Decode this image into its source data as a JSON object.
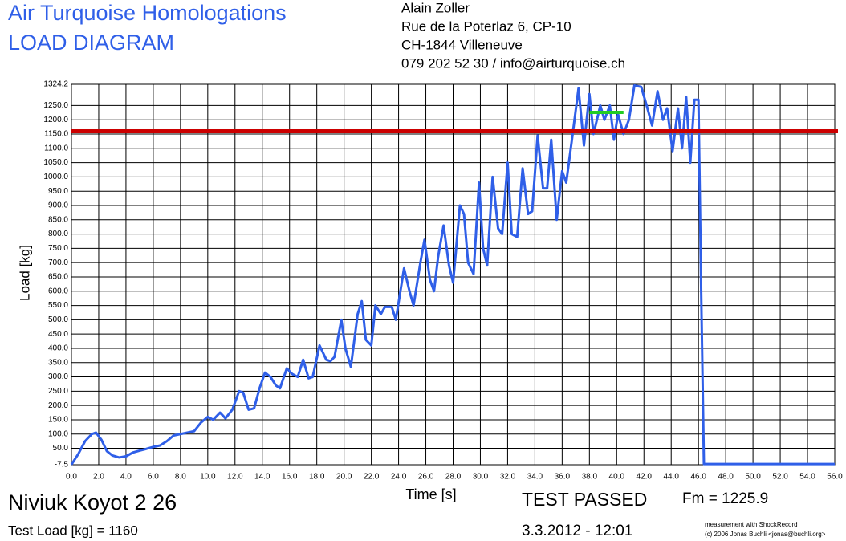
{
  "chart_data": {
    "type": "line",
    "title": "Air Turquoise Homologations",
    "subtitle": "LOAD DIAGRAM",
    "header_lines": [
      "Alain Zoller",
      "Rue de la Poterlaz 6, CP-10",
      "CH-1844 Villeneuve",
      "079 202 52 30 / info@airturquoise.ch"
    ],
    "x_label": "Time [s]",
    "y_label": "Load [kg]",
    "glider": "Niviuk Koyot 2 26",
    "result": "TEST PASSED",
    "date": "3.3.2012 - 12:01",
    "credit_lines": [
      "measurement with ShockRecord",
      "(c) 2006 Jonas Buchli <jonas@buchli.org>"
    ],
    "test_load": {
      "label": "Test Load [kg] = 1160",
      "value": 1160,
      "color": "#cc0000"
    },
    "fm": {
      "label": "Fm = 1225.9",
      "value": 1225.9,
      "xrange": [
        38,
        40.5
      ],
      "color": "#22cc22"
    },
    "grid": true,
    "xlim": [
      0,
      56
    ],
    "ylim": [
      -7.5,
      1324.2
    ],
    "xticks": [
      {
        "value": 0,
        "label": "0.0"
      },
      {
        "value": 2,
        "label": "2.0"
      },
      {
        "value": 4,
        "label": "4.0"
      },
      {
        "value": 6,
        "label": "6.0"
      },
      {
        "value": 8,
        "label": "8.0"
      },
      {
        "value": 10,
        "label": "10.0"
      },
      {
        "value": 12,
        "label": "12.0"
      },
      {
        "value": 14,
        "label": "14.0"
      },
      {
        "value": 16,
        "label": "16.0"
      },
      {
        "value": 18,
        "label": "18.0"
      },
      {
        "value": 20,
        "label": "20.0"
      },
      {
        "value": 22,
        "label": "22.0"
      },
      {
        "value": 24,
        "label": "24.0"
      },
      {
        "value": 26,
        "label": "26.0"
      },
      {
        "value": 28,
        "label": "28.0"
      },
      {
        "value": 30,
        "label": "30.0"
      },
      {
        "value": 32,
        "label": "32.0"
      },
      {
        "value": 34,
        "label": "34.0"
      },
      {
        "value": 36,
        "label": "36.0"
      },
      {
        "value": 38,
        "label": "38.0"
      },
      {
        "value": 40,
        "label": "40.0"
      },
      {
        "value": 42,
        "label": "42.0"
      },
      {
        "value": 44,
        "label": "44.0"
      },
      {
        "value": 46,
        "label": "46.0"
      },
      {
        "value": 48,
        "label": "48.0"
      },
      {
        "value": 50,
        "label": "50.0"
      },
      {
        "value": 52,
        "label": "52.0"
      },
      {
        "value": 54,
        "label": "54.0"
      },
      {
        "value": 56,
        "label": "56.0"
      }
    ],
    "yticks": [
      -7.5,
      {
        "value": 50,
        "label": "50.0"
      },
      {
        "value": 100,
        "label": "100.0"
      },
      {
        "value": 150,
        "label": "150.0"
      },
      {
        "value": 200,
        "label": "200.0"
      },
      {
        "value": 250,
        "label": "250.0"
      },
      {
        "value": 300,
        "label": "300.0"
      },
      {
        "value": 350,
        "label": "350.0"
      },
      {
        "value": 400,
        "label": "400.0"
      },
      {
        "value": 450,
        "label": "450.0"
      },
      {
        "value": 500,
        "label": "500.0"
      },
      {
        "value": 550,
        "label": "550.0"
      },
      {
        "value": 600,
        "label": "600.0"
      },
      {
        "value": 650,
        "label": "650.0"
      },
      {
        "value": 700,
        "label": "700.0"
      },
      {
        "value": 750,
        "label": "750.0"
      },
      {
        "value": 800,
        "label": "800.0"
      },
      {
        "value": 850,
        "label": "850.0"
      },
      {
        "value": 900,
        "label": "900.0"
      },
      {
        "value": 950,
        "label": "950.0"
      },
      {
        "value": 1000,
        "label": "1000.0"
      },
      {
        "value": 1050,
        "label": "1050.0"
      },
      {
        "value": 1100,
        "label": "1100.0"
      },
      {
        "value": 1150,
        "label": "1150.0"
      },
      {
        "value": 1200,
        "label": "1200.0"
      },
      {
        "value": 1250,
        "label": "1250.0"
      },
      1324.2
    ],
    "series": [
      {
        "color": "#2f5fe8",
        "x": [
          0,
          0.5,
          1.0,
          1.5,
          1.8,
          2.2,
          2.6,
          3.0,
          3.5,
          4.0,
          4.5,
          5.0,
          5.5,
          6.0,
          6.5,
          7.0,
          7.5,
          8.0,
          8.5,
          9.0,
          9.5,
          10.0,
          10.4,
          10.9,
          11.3,
          11.8,
          12.3,
          12.6,
          13.0,
          13.4,
          13.8,
          14.2,
          14.6,
          15.0,
          15.3,
          15.8,
          16.2,
          16.6,
          17.0,
          17.4,
          17.7,
          18.2,
          18.7,
          19.0,
          19.3,
          19.8,
          20.1,
          20.5,
          21.0,
          21.3,
          21.6,
          22.0,
          22.3,
          22.7,
          23.0,
          23.5,
          23.8,
          24.4,
          24.8,
          25.1,
          25.6,
          25.9,
          26.3,
          26.6,
          26.9,
          27.3,
          27.7,
          28.0,
          28.5,
          28.8,
          29.1,
          29.5,
          29.9,
          30.2,
          30.5,
          30.9,
          31.3,
          31.6,
          32.0,
          32.3,
          32.7,
          33.1,
          33.5,
          33.8,
          34.2,
          34.6,
          34.9,
          35.2,
          35.6,
          36.0,
          36.3,
          36.8,
          37.2,
          37.6,
          38.0,
          38.3,
          38.8,
          39.1,
          39.5,
          39.8,
          40.1,
          40.5,
          40.9,
          41.3,
          41.8,
          42.2,
          42.6,
          43.0,
          43.4,
          43.7,
          44.1,
          44.5,
          44.8,
          45.1,
          45.4,
          45.7,
          46.0,
          46.2,
          46.4,
          56.0
        ],
        "values": [
          -7,
          30,
          75,
          100,
          105,
          80,
          40,
          25,
          18,
          22,
          35,
          42,
          48,
          55,
          60,
          75,
          95,
          100,
          105,
          110,
          140,
          160,
          150,
          175,
          155,
          185,
          250,
          245,
          185,
          190,
          260,
          315,
          300,
          270,
          260,
          330,
          310,
          300,
          360,
          295,
          300,
          410,
          360,
          355,
          370,
          500,
          400,
          335,
          520,
          565,
          430,
          410,
          550,
          520,
          545,
          545,
          500,
          680,
          600,
          550,
          700,
          780,
          640,
          600,
          720,
          830,
          690,
          630,
          900,
          870,
          700,
          660,
          980,
          750,
          690,
          1000,
          820,
          800,
          1050,
          800,
          790,
          1030,
          870,
          880,
          1145,
          960,
          960,
          1130,
          850,
          1020,
          980,
          1160,
          1310,
          1110,
          1290,
          1150,
          1250,
          1200,
          1250,
          1130,
          1220,
          1150,
          1200,
          1320,
          1315,
          1250,
          1180,
          1300,
          1200,
          1240,
          1090,
          1240,
          1100,
          1280,
          1050,
          1270,
          1270,
          600,
          -5,
          -5
        ]
      }
    ]
  }
}
